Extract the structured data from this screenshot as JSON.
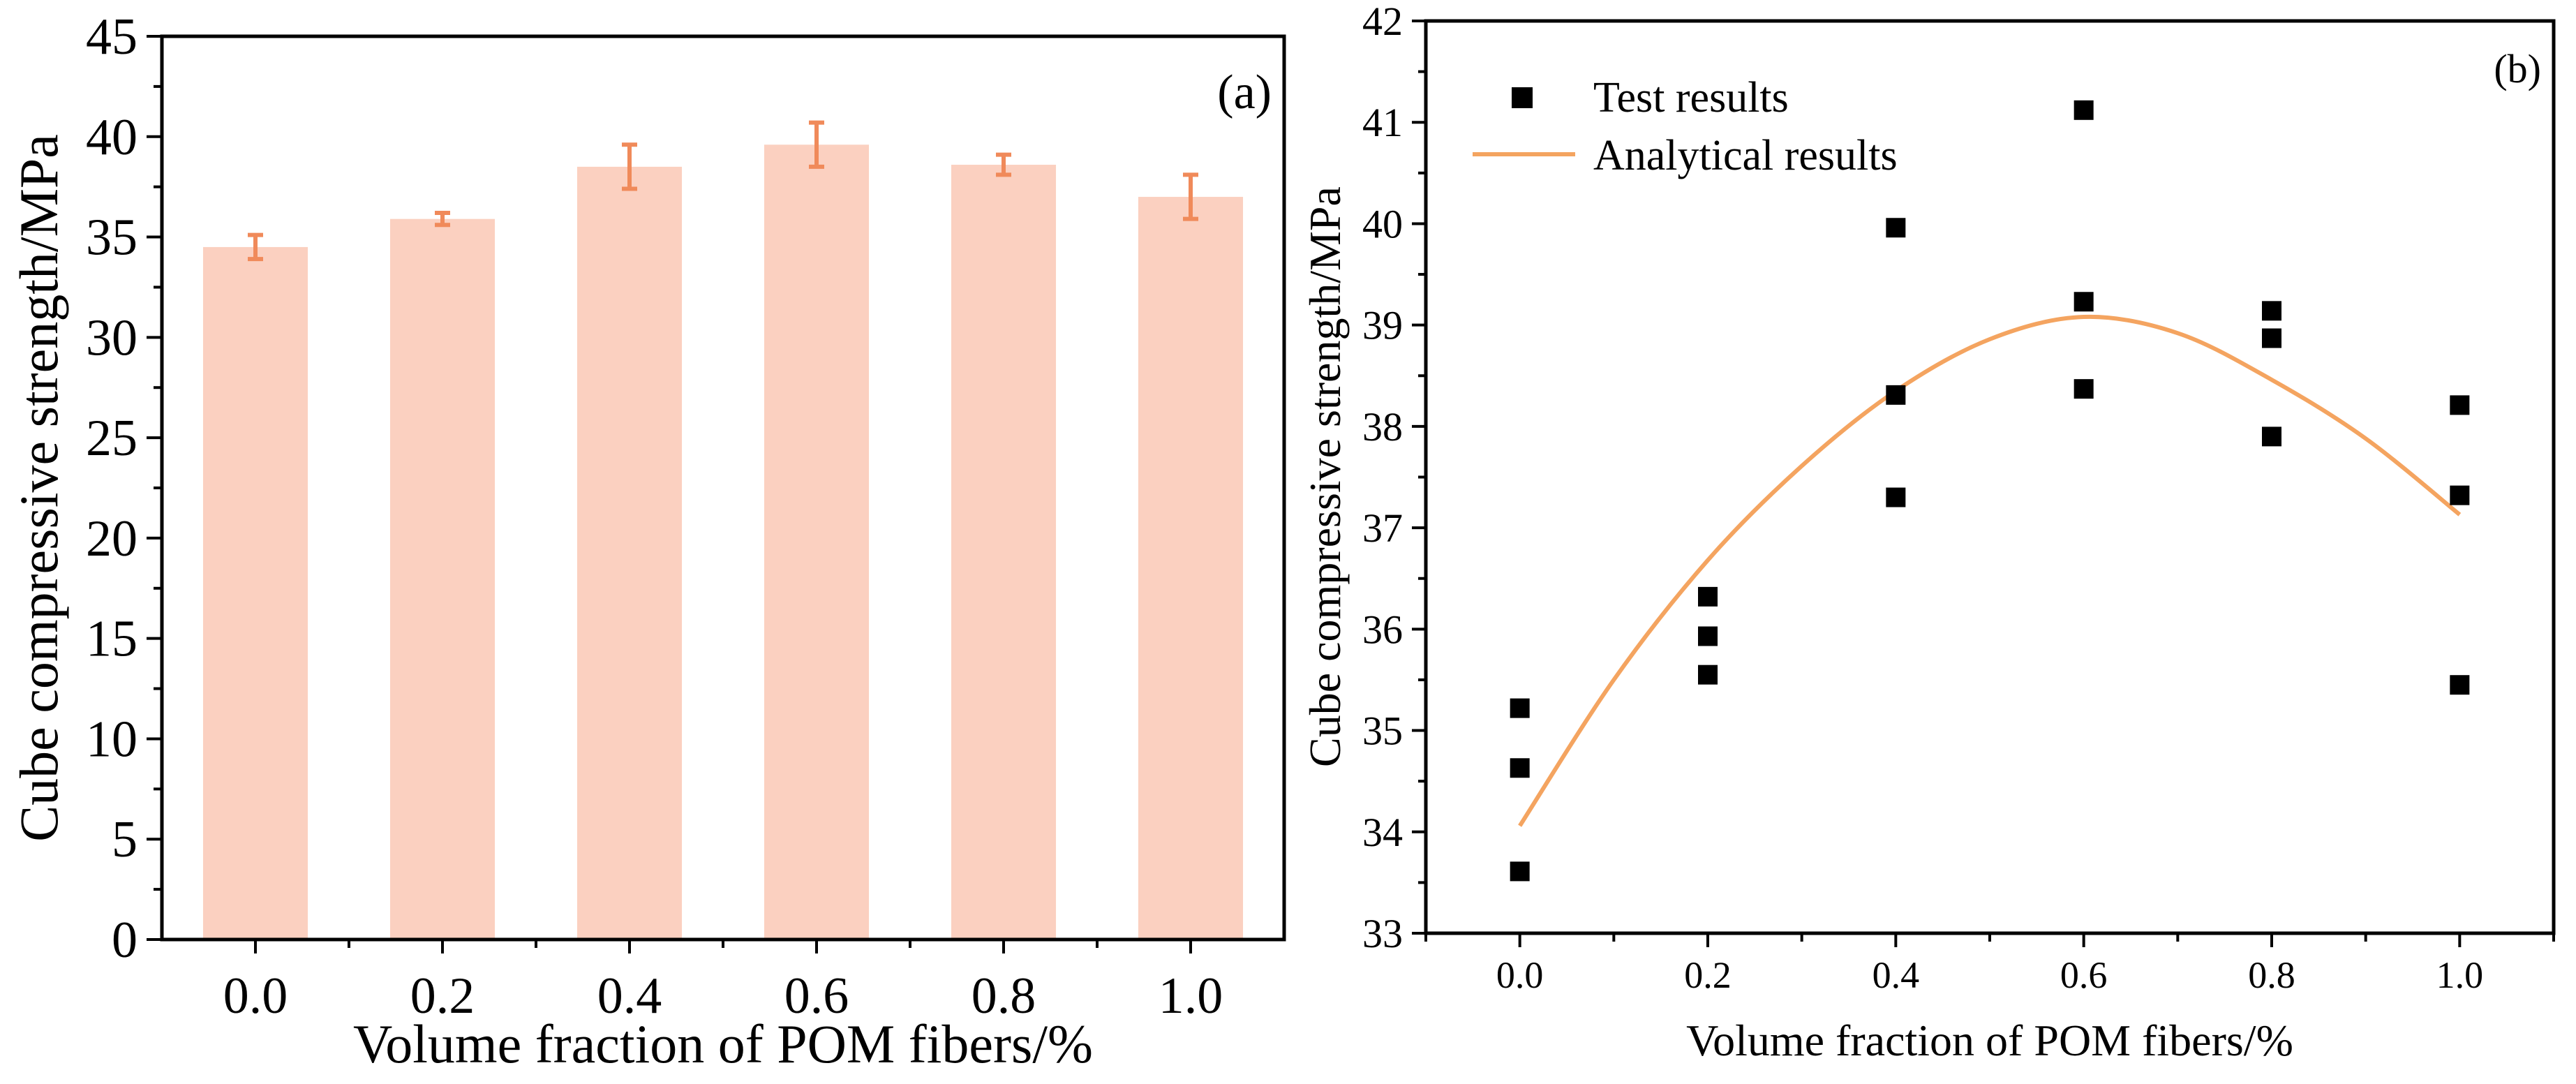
{
  "chart_data": [
    {
      "panel_label": "(a)",
      "type": "bar",
      "xlabel": "Volume fraction of POM fibers/%",
      "ylabel": "Cube compressive strength/MPa",
      "categories": [
        "0.0",
        "0.2",
        "0.4",
        "0.6",
        "0.8",
        "1.0"
      ],
      "values": [
        34.5,
        35.9,
        38.5,
        39.6,
        38.6,
        37.0
      ],
      "errors": [
        0.6,
        0.3,
        1.1,
        1.1,
        0.5,
        1.1
      ],
      "ylim": [
        0,
        45
      ],
      "yticks": [
        "0",
        "5",
        "10",
        "15",
        "20",
        "25",
        "30",
        "35",
        "40",
        "45"
      ],
      "bar_color": "#fbd0c0",
      "error_color": "#f08a5a"
    },
    {
      "panel_label": "(b)",
      "type": "scatter",
      "xlabel": "Volume fraction of POM fibers/%",
      "ylabel": "Cube compressive strength/MPa",
      "xlim": [
        -0.1,
        1.1
      ],
      "ylim": [
        33,
        42
      ],
      "xticks": [
        "0.0",
        "0.2",
        "0.4",
        "0.6",
        "0.8",
        "1.0"
      ],
      "yticks": [
        "33",
        "34",
        "35",
        "36",
        "37",
        "38",
        "39",
        "40",
        "41",
        "42"
      ],
      "legend_position": "top-left",
      "series": [
        {
          "name": "Test results",
          "kind": "scatter",
          "marker": "square",
          "color": "#000000",
          "points": [
            [
              0.0,
              35.22
            ],
            [
              0.0,
              34.63
            ],
            [
              0.0,
              33.61
            ],
            [
              0.2,
              36.32
            ],
            [
              0.2,
              35.93
            ],
            [
              0.2,
              35.55
            ],
            [
              0.4,
              39.96
            ],
            [
              0.4,
              38.31
            ],
            [
              0.4,
              37.3
            ],
            [
              0.6,
              41.12
            ],
            [
              0.6,
              39.23
            ],
            [
              0.6,
              38.37
            ],
            [
              0.8,
              39.14
            ],
            [
              0.8,
              38.87
            ],
            [
              0.8,
              37.9
            ],
            [
              1.0,
              38.21
            ],
            [
              1.0,
              37.32
            ],
            [
              1.0,
              35.45
            ]
          ]
        },
        {
          "name": "Analytical results",
          "kind": "line",
          "color": "#f4a460",
          "points": [
            [
              0.0,
              34.06
            ],
            [
              0.1,
              35.5
            ],
            [
              0.2,
              36.68
            ],
            [
              0.3,
              37.61
            ],
            [
              0.4,
              38.35
            ],
            [
              0.5,
              38.86
            ],
            [
              0.6,
              39.08
            ],
            [
              0.7,
              38.92
            ],
            [
              0.8,
              38.46
            ],
            [
              0.9,
              37.88
            ],
            [
              1.0,
              37.13
            ]
          ]
        }
      ]
    }
  ]
}
